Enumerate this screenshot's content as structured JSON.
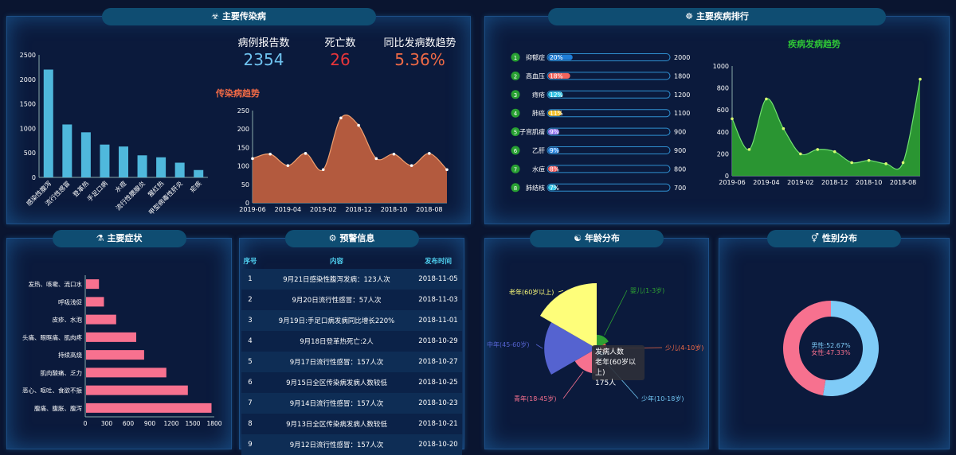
{
  "panels": {
    "infectious": {
      "title": "主要传染病",
      "icon": "☣"
    },
    "ranking": {
      "title": "主要疾病排行",
      "icon": "☸"
    },
    "symptoms": {
      "title": "主要症状",
      "icon": "⚗"
    },
    "warning": {
      "title": "预警信息",
      "icon": "⚙"
    },
    "age": {
      "title": "年龄分布",
      "icon": "☯"
    },
    "gender": {
      "title": "性别分布",
      "icon": "⚥"
    }
  },
  "stats": [
    {
      "label": "病例报告数",
      "value": "2354",
      "color": "#6fc3f0"
    },
    {
      "label": "死亡数",
      "value": "26",
      "color": "#e8353a"
    },
    {
      "label": "同比发病数趋势",
      "value": "5.36%",
      "color": "#f06a46"
    }
  ],
  "colors": {
    "bar_blue": "#4fb8dc",
    "area_orange": "#c2603f",
    "area_green": "#2ea032",
    "bar_pink": "#f7718f"
  },
  "chart_data": [
    {
      "id": "infectious-bar",
      "type": "bar",
      "categories": [
        "感染性腹泻",
        "流行性感冒",
        "登革热",
        "手足口病",
        "水痘",
        "流行性腮腺炎",
        "猩红热",
        "甲型病毒性肝炎",
        "疟疾"
      ],
      "values": [
        2200,
        1080,
        920,
        670,
        630,
        450,
        410,
        300,
        150
      ],
      "ylim": [
        0,
        2500
      ],
      "yticks": [
        0,
        500,
        1000,
        1500,
        2000,
        2500
      ]
    },
    {
      "id": "infectious-trend",
      "type": "area",
      "title": "传染病趋势",
      "x": [
        "2019-06",
        "",
        "2019-04",
        "",
        "2019-02",
        "",
        "2018-12",
        "",
        "2018-10",
        "",
        "2018-08",
        ""
      ],
      "values": [
        120,
        132,
        101,
        134,
        90,
        230,
        210,
        120,
        132,
        101,
        134,
        90
      ],
      "ylim": [
        0,
        250
      ],
      "yticks": [
        0,
        50,
        100,
        150,
        200,
        250
      ]
    },
    {
      "id": "disease-ranking",
      "type": "bar",
      "categories": [
        "抑郁症",
        "高血压",
        "痔疮",
        "肺癌",
        "子宫肌瘤",
        "乙肝",
        "水痘",
        "肺结核"
      ],
      "percents": [
        "20%",
        "18%",
        "12%",
        "11%",
        "9%",
        "9%",
        "8%",
        "7%"
      ],
      "totals": [
        "2000",
        "1800",
        "1200",
        "1100",
        "900",
        "900",
        "800",
        "700"
      ],
      "bar_colors": [
        "#1f7ed8",
        "#f2645c",
        "#36c6e6",
        "#f6c532",
        "#9b7cf2",
        "#2f8be6",
        "#f45d5d",
        "#36c6e6"
      ]
    },
    {
      "id": "disease-trend",
      "type": "area",
      "title": "疾病发病趋势",
      "x": [
        "2019-06",
        "",
        "2019-04",
        "",
        "2019-02",
        "",
        "2018-12",
        "",
        "2018-10",
        "",
        "2018-08",
        ""
      ],
      "values": [
        520,
        240,
        700,
        430,
        200,
        240,
        220,
        120,
        140,
        110,
        120,
        880
      ],
      "ylim": [
        0,
        1000
      ],
      "yticks": [
        0,
        200,
        400,
        600,
        800,
        1000
      ]
    },
    {
      "id": "symptom-bar",
      "type": "bar",
      "categories": [
        "腹痛、腹胀、腹泻",
        "恶心、呕吐、食欲不振",
        "肌肉酸痛、乏力",
        "持续高烧",
        "头痛、眼眶痛、肌肉疼",
        "皮疹、水泡",
        "呼吸浅促",
        "发热、咳嗽、流口水"
      ],
      "values": [
        1750,
        1420,
        1120,
        810,
        700,
        420,
        250,
        180
      ],
      "xlim": [
        0,
        1800
      ],
      "xticks": [
        0,
        300,
        600,
        900,
        1200,
        1500,
        1800
      ]
    },
    {
      "id": "age-rose",
      "type": "pie",
      "categories": [
        "婴儿(1-3岁)",
        "少儿(4-10岁)",
        "少年(10-18岁)",
        "青年(18-45岁)",
        "中年(45-60岁)",
        "老年(60岁以上)"
      ],
      "values": [
        5,
        2,
        2,
        22,
        110,
        175
      ],
      "label_colors": [
        "#2ea032",
        "#f06a46",
        "#6fc3f0",
        "#f7718f",
        "#5563d0",
        "#fefe7a"
      ],
      "tooltip": {
        "title": "发病人数",
        "line1": "老年(60岁以上)",
        "line2": "175人"
      }
    },
    {
      "id": "gender-donut",
      "type": "pie",
      "categories": [
        "男性",
        "女性"
      ],
      "values": [
        52.67,
        47.33
      ],
      "labels": [
        "男性:52.67%",
        "女性:47.33%"
      ],
      "slice_colors": [
        "#7fcbf7",
        "#f7718f"
      ]
    }
  ],
  "warning": {
    "headers": [
      "序号",
      "内容",
      "发布时间"
    ],
    "rows": [
      {
        "no": "1",
        "content": "9月21日感染性腹泻发病：123人次",
        "date": "2018-11-05"
      },
      {
        "no": "2",
        "content": "9月20日流行性感冒：57人次",
        "date": "2018-11-03"
      },
      {
        "no": "3",
        "content": "9月19日:手足口病发病同比增长220%",
        "date": "2018-11-01"
      },
      {
        "no": "4",
        "content": "9月18日登革热死亡:2人",
        "date": "2018-10-29"
      },
      {
        "no": "5",
        "content": "9月17日流行性感冒：157人次",
        "date": "2018-10-27"
      },
      {
        "no": "6",
        "content": "9月15日全区传染病发病人数较低",
        "date": "2018-10-25"
      },
      {
        "no": "7",
        "content": "9月14日流行性感冒：157人次",
        "date": "2018-10-23"
      },
      {
        "no": "8",
        "content": "9月13日全区传染病发病人数较低",
        "date": "2018-10-21"
      },
      {
        "no": "9",
        "content": "9月12日流行性感冒：157人次",
        "date": "2018-10-20"
      }
    ]
  }
}
